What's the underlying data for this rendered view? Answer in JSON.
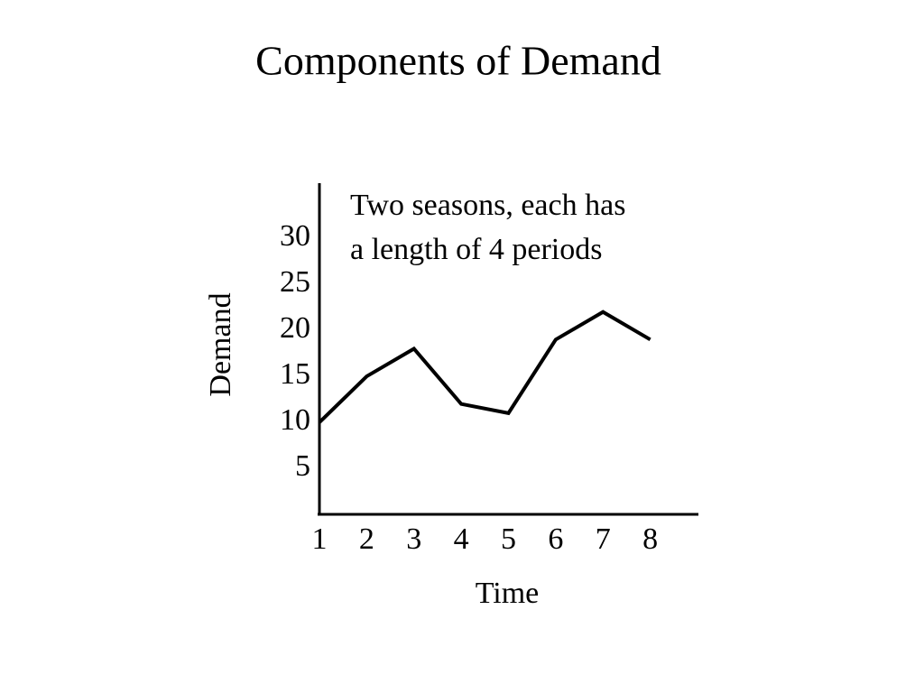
{
  "chart_data": {
    "type": "line",
    "title": "Components of Demand",
    "annotation": [
      "Two seasons, each has",
      "a length of 4 periods"
    ],
    "x_label": "Time",
    "y_label": "Demand",
    "x": [
      1,
      2,
      3,
      4,
      5,
      6,
      7,
      8
    ],
    "series": [
      {
        "color": "#000000",
        "values": [
          10,
          15,
          18,
          12,
          11,
          19,
          22,
          19
        ]
      }
    ],
    "xlim": [
      1,
      9
    ],
    "ylim": [
      0,
      36
    ],
    "xticks": [
      1,
      2,
      3,
      4,
      5,
      6,
      7,
      8
    ],
    "yticks": [
      5,
      10,
      15,
      20,
      25,
      30
    ],
    "grid": false
  }
}
